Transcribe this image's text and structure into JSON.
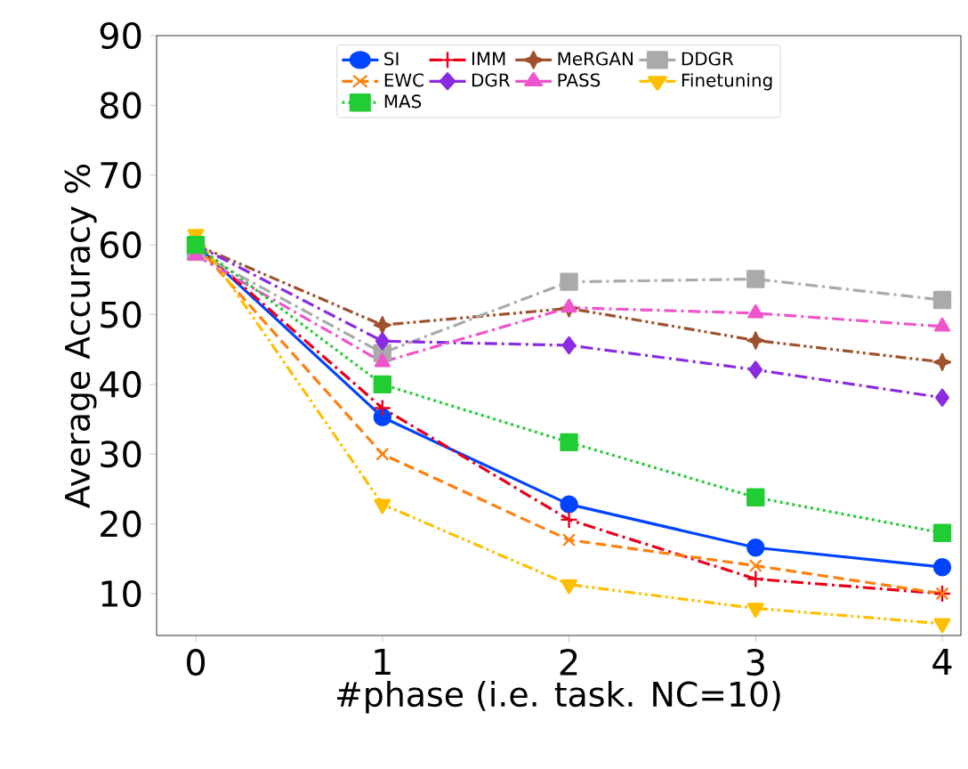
{
  "chart_data": {
    "type": "line",
    "xlabel": "#phase (i.e. task. NC=10)",
    "ylabel": "Average Accuracy %",
    "x": [
      0,
      1,
      2,
      3,
      4
    ],
    "xlim": [
      -0.21,
      4.1
    ],
    "ylim": [
      4,
      90
    ],
    "xticks": [
      0,
      1,
      2,
      3,
      4
    ],
    "yticks": [
      10,
      20,
      30,
      40,
      50,
      60,
      70,
      80,
      90
    ],
    "grid": false,
    "legend": "top",
    "series": [
      {
        "name": "SI",
        "color": "#0044ff",
        "marker": "circle",
        "line_style": "solid",
        "values": [
          60,
          35.3,
          22.8,
          16.6,
          13.8
        ]
      },
      {
        "name": "IMM",
        "color": "#e8001c",
        "marker": "plus",
        "line_style": "dashdot",
        "values": [
          60,
          36.6,
          20.6,
          12.1,
          10
        ]
      },
      {
        "name": "MeRGAN",
        "color": "#a0522d",
        "marker": "star",
        "line_style": "dashdotdot",
        "values": [
          60,
          48.5,
          50.9,
          46.3,
          43.2
        ]
      },
      {
        "name": "DDGR",
        "color": "#aaaaaa",
        "marker": "square",
        "line_style": "dashdot",
        "values": [
          59,
          44.5,
          54.7,
          55.1,
          52.1
        ]
      },
      {
        "name": "EWC",
        "color": "#ff7f0e",
        "marker": "cross",
        "line_style": "dashed",
        "values": [
          60,
          30,
          17.7,
          14,
          10
        ]
      },
      {
        "name": "DGR",
        "color": "#8a2be2",
        "marker": "diamond",
        "line_style": "dashdot",
        "values": [
          60,
          46.2,
          45.6,
          42.1,
          38.1
        ]
      },
      {
        "name": "PASS",
        "color": "#ee55cc",
        "marker": "triangle",
        "line_style": "dashdot",
        "values": [
          58.5,
          43.2,
          51,
          50.2,
          48.3
        ]
      },
      {
        "name": "Finetuning",
        "color": "#ffbf00",
        "marker": "triangle down",
        "line_style": "dashdotdot",
        "values": [
          61.5,
          22.8,
          11.3,
          7.9,
          5.7
        ]
      },
      {
        "name": "MAS",
        "color": "#22cc33",
        "marker": "square",
        "line_style": "dotted",
        "values": [
          60,
          40,
          31.7,
          23.8,
          18.7
        ]
      }
    ]
  }
}
